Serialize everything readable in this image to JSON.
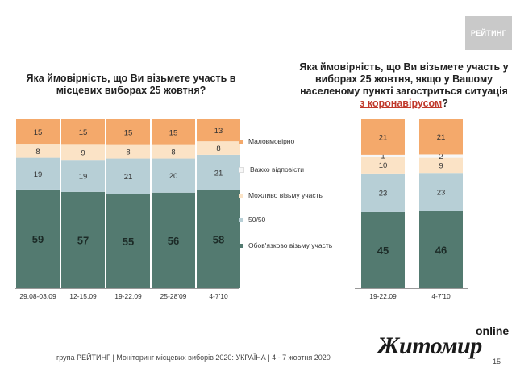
{
  "logo_text": "РЕЙТИНГ",
  "footer": "група РЕЙТИНГ | Моніторинг місцевих виборів 2020: УКРАЇНА | 4 - 7 жовтня 2020",
  "page_number": "15",
  "watermark": {
    "online": "online",
    "name": "Житомир"
  },
  "colors": {
    "malo": "#f4a96b",
    "vazhko": "#f7f7f7",
    "mozhlyvo": "#fbe3c6",
    "fifty": "#b7cfd6",
    "oboviazkovo": "#537a70"
  },
  "legend": [
    {
      "key": "malo",
      "label": "Маловмовірно"
    },
    {
      "key": "vazhko",
      "label": "Важко відповісти"
    },
    {
      "key": "mozhlyvo",
      "label": "Можливо візьму участь"
    },
    {
      "key": "fifty",
      "label": "50/50"
    },
    {
      "key": "oboviazkovo",
      "label": "Обов'язково візьму участь"
    }
  ],
  "chart_data": [
    {
      "type": "bar",
      "stacked": true,
      "title": "Яка ймовірність, що Ви візьмете участь в місцевих виборах 25 жовтня?",
      "categories": [
        "29.08-03.09",
        "12-15.09",
        "19-22.09",
        "25-28'09",
        "4-7'10"
      ],
      "series": [
        {
          "name": "Обов'язково візьму участь",
          "key": "oboviazkovo",
          "values": [
            59,
            57,
            55,
            56,
            58
          ]
        },
        {
          "name": "50/50",
          "key": "fifty",
          "values": [
            19,
            19,
            21,
            20,
            21
          ]
        },
        {
          "name": "Можливо візьму участь",
          "key": "mozhlyvo",
          "values": [
            8,
            9,
            8,
            8,
            8
          ]
        },
        {
          "name": "Важко відповісти",
          "key": "vazhko",
          "values": [
            null,
            null,
            null,
            null,
            null
          ]
        },
        {
          "name": "Маловмовірно",
          "key": "malo",
          "values": [
            15,
            15,
            15,
            15,
            13
          ]
        }
      ],
      "ylim": [
        0,
        100
      ],
      "legend_position": "right"
    },
    {
      "type": "bar",
      "stacked": true,
      "title_parts": {
        "main": "Яка ймовірність, що Ви візьмете участь у виборах 25 жовтня, якщо у Вашому населеному пункті загостриться ситуація ",
        "underlined": "з коронавірусом",
        "end": "?"
      },
      "categories": [
        "19-22.09",
        "4-7'10"
      ],
      "series": [
        {
          "name": "Обов'язково візьму участь",
          "key": "oboviazkovo",
          "values": [
            45,
            46
          ]
        },
        {
          "name": "50/50",
          "key": "fifty",
          "values": [
            23,
            23
          ]
        },
        {
          "name": "Можливо візьму участь",
          "key": "mozhlyvo",
          "values": [
            10,
            9
          ]
        },
        {
          "name": "Важко відповісти",
          "key": "vazhko",
          "values": [
            1,
            2
          ]
        },
        {
          "name": "Маловмовірно",
          "key": "malo",
          "values": [
            21,
            21
          ]
        }
      ],
      "ylim": [
        0,
        100
      ]
    }
  ]
}
